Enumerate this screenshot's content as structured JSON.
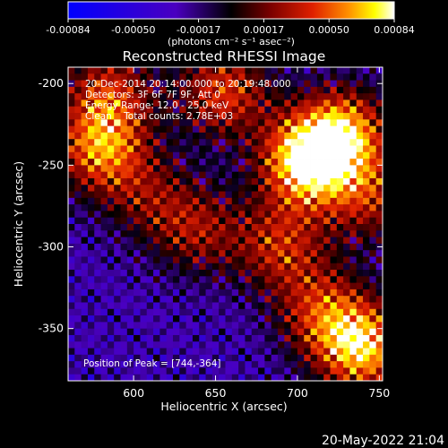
{
  "colorbar": {
    "ticks": [
      "-0.00084",
      "-0.00050",
      "-0.00017",
      "0.00017",
      "0.00050",
      "0.00084"
    ],
    "units_label": "(photons cm⁻² s⁻¹ asec⁻²)",
    "range": [
      -0.00084,
      0.00084
    ],
    "colors": [
      "#0000ff",
      "#4a00c0",
      "#000000",
      "#7a0000",
      "#e02000",
      "#ff9000",
      "#ffff00",
      "#ffffff"
    ]
  },
  "chart_data": {
    "type": "heatmap",
    "title": "Reconstructed RHESSI Image",
    "xlabel": "Heliocentric X (arcsec)",
    "ylabel": "Heliocentric Y (arcsec)",
    "xlim": [
      560,
      752
    ],
    "ylim": [
      -382,
      -190
    ],
    "xticks": [
      600,
      650,
      700,
      750
    ],
    "yticks": [
      -200,
      -250,
      -300,
      -350
    ],
    "annotations": [
      "20-Dec-2014 20:14:00.000 to 20:19:48.000",
      "Detectors: 3F 6F 7F 9F, Att 0",
      "Energy Range: 12.0 - 25.0 keV",
      "Clean    Total counts: 2.78E+03"
    ],
    "peak_label": "Position of Peak = [744,-364]",
    "peak": [
      744,
      -364
    ],
    "hotspots": [
      {
        "x": 705,
        "y": -248,
        "intensity": 1.0
      },
      {
        "x": 728,
        "y": -230,
        "intensity": 0.8
      },
      {
        "x": 580,
        "y": -240,
        "intensity": 0.75
      },
      {
        "x": 655,
        "y": -205,
        "intensity": 0.65
      },
      {
        "x": 690,
        "y": -300,
        "intensity": 0.55
      },
      {
        "x": 740,
        "y": -362,
        "intensity": 0.9
      },
      {
        "x": 715,
        "y": -340,
        "intensity": 0.55
      },
      {
        "x": 640,
        "y": -290,
        "intensity": 0.45
      },
      {
        "x": 585,
        "y": -205,
        "intensity": 0.55
      },
      {
        "x": 610,
        "y": -270,
        "intensity": 0.35
      },
      {
        "x": 745,
        "y": -270,
        "intensity": 0.5
      }
    ]
  },
  "footer": {
    "timestamp": "20-May-2022 21:04"
  }
}
